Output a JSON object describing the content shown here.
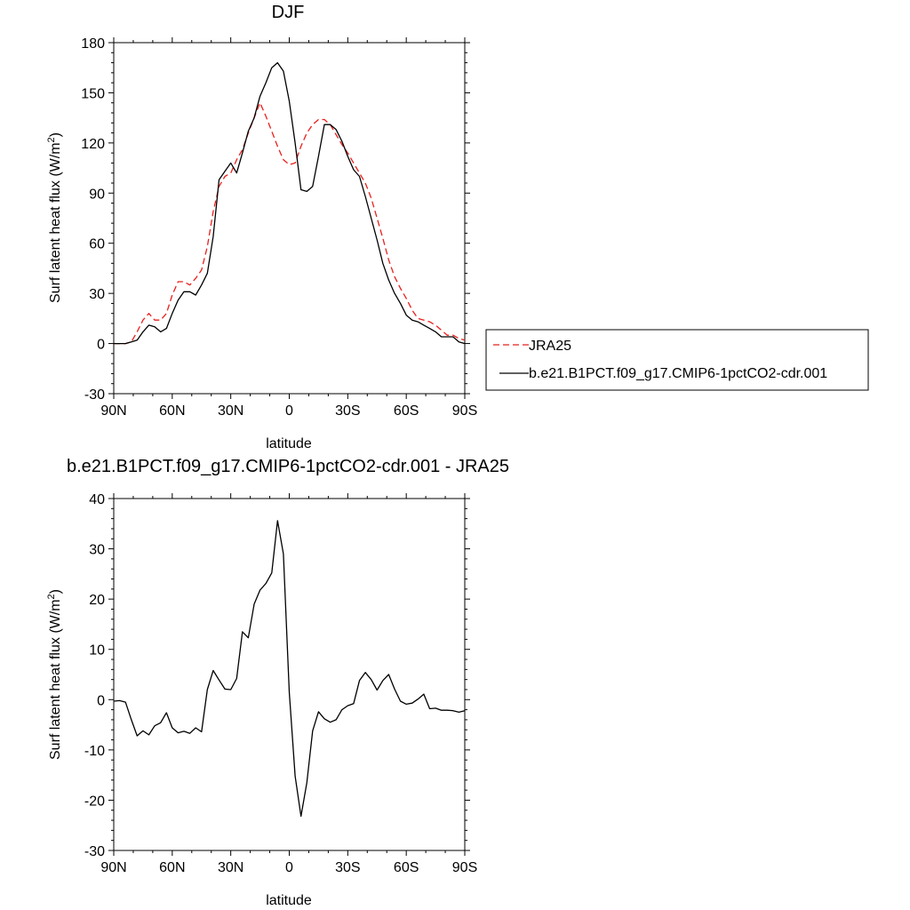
{
  "chart_data": [
    {
      "type": "line",
      "title": "DJF",
      "xlabel": "latitude",
      "ylabel": "Surf latent heat flux (W/m",
      "ylabel_sup": "2",
      "ylabel_end": ")",
      "xlim": [
        90,
        -90
      ],
      "ylim": [
        -30,
        180
      ],
      "yticks": [
        -30,
        0,
        30,
        60,
        90,
        120,
        150,
        180
      ],
      "xticks": [
        90,
        60,
        30,
        0,
        -30,
        -60,
        -90
      ],
      "xtick_labels": [
        "90N",
        "60N",
        "30N",
        "0",
        "30S",
        "60S",
        "90S"
      ],
      "legend": {
        "placement": "right",
        "entries": [
          "JRA25",
          "b.e21.B1PCT.f09_g17.CMIP6-1pctCO2-cdr.001"
        ]
      },
      "series": [
        {
          "name": "JRA25",
          "color": "#e8201c",
          "dash": "dashed",
          "x": [
            90,
            87,
            84,
            81,
            78,
            75,
            72,
            69,
            66,
            63,
            60,
            57,
            54,
            51,
            48,
            45,
            42,
            39,
            36,
            33,
            30,
            27,
            24,
            21,
            18,
            15,
            12,
            9,
            6,
            3,
            0,
            -3,
            -6,
            -9,
            -12,
            -15,
            -18,
            -21,
            -24,
            -27,
            -30,
            -33,
            -36,
            -39,
            -42,
            -45,
            -48,
            -51,
            -54,
            -57,
            -60,
            -63,
            -66,
            -69,
            -72,
            -75,
            -78,
            -81,
            -84,
            -87,
            -90
          ],
          "y": [
            0,
            0,
            0,
            1,
            7,
            14,
            18,
            14,
            14,
            18,
            29,
            37,
            37,
            35,
            39,
            44,
            58,
            79,
            94,
            100,
            102,
            110,
            116,
            126,
            135,
            144,
            136,
            127,
            118,
            110,
            107,
            108,
            118,
            126,
            131,
            134,
            134,
            131,
            125,
            119,
            114,
            108,
            102,
            96,
            87,
            75,
            63,
            50,
            40,
            33,
            27,
            20,
            15,
            14,
            13,
            11,
            8,
            5,
            5,
            3,
            2
          ]
        },
        {
          "name": "b.e21.B1PCT.f09_g17.CMIP6-1pctCO2-cdr.001",
          "color": "#000000",
          "dash": "solid",
          "x": [
            90,
            87,
            84,
            81,
            78,
            75,
            72,
            69,
            66,
            63,
            60,
            57,
            54,
            51,
            48,
            45,
            42,
            39,
            36,
            33,
            30,
            27,
            24,
            21,
            18,
            15,
            12,
            9,
            6,
            3,
            0,
            -3,
            -6,
            -9,
            -12,
            -15,
            -18,
            -21,
            -24,
            -27,
            -30,
            -33,
            -36,
            -39,
            -42,
            -45,
            -48,
            -51,
            -54,
            -57,
            -60,
            -63,
            -66,
            -69,
            -72,
            -75,
            -78,
            -81,
            -84,
            -87,
            -90
          ],
          "y": [
            0,
            0,
            0,
            1,
            2,
            7,
            11,
            10,
            7,
            9,
            18,
            26,
            31,
            31,
            29,
            35,
            42,
            64,
            98,
            103,
            108,
            102,
            114,
            127,
            135,
            148,
            156,
            165,
            168,
            163,
            145,
            120,
            92,
            91,
            94,
            112,
            131,
            131,
            128,
            121,
            112,
            104,
            100,
            88,
            75,
            62,
            48,
            38,
            30,
            24,
            17,
            14,
            13,
            11,
            9,
            7,
            4,
            4,
            4,
            1,
            0
          ]
        }
      ]
    },
    {
      "type": "line",
      "title": "b.e21.B1PCT.f09_g17.CMIP6-1pctCO2-cdr.001 - JRA25",
      "xlabel": "latitude",
      "ylabel": "Surf latent heat flux (W/m",
      "ylabel_sup": "2",
      "ylabel_end": ")",
      "xlim": [
        90,
        -90
      ],
      "ylim": [
        -30,
        40
      ],
      "yticks": [
        -30,
        -20,
        -10,
        0,
        10,
        20,
        30,
        40
      ],
      "xticks": [
        90,
        60,
        30,
        0,
        -30,
        -60,
        -90
      ],
      "xtick_labels": [
        "90N",
        "60N",
        "30N",
        "0",
        "30S",
        "60S",
        "90S"
      ],
      "series": [
        {
          "color": "#000000",
          "dash": "solid",
          "x": [
            90,
            87,
            84,
            81,
            78,
            75,
            72,
            69,
            66,
            63,
            60,
            57,
            54,
            51,
            48,
            45,
            42,
            39,
            36,
            33,
            30,
            27,
            24,
            21,
            18,
            15,
            12,
            9,
            6,
            3,
            0,
            -3,
            -6,
            -9,
            -12,
            -15,
            -18,
            -21,
            -24,
            -27,
            -30,
            -33,
            -36,
            -39,
            -42,
            -45,
            -48,
            -51,
            -54,
            -57,
            -60,
            -63,
            -66,
            -69,
            -72,
            -75,
            -78,
            -81,
            -84,
            -87,
            -90
          ],
          "y": [
            -0.3,
            -0.2,
            -0.5,
            -4,
            -7.2,
            -6.2,
            -7,
            -5.2,
            -4.6,
            -2.6,
            -5.6,
            -6.6,
            -6.3,
            -6.7,
            -5.6,
            -6.4,
            2.0,
            5.8,
            3.9,
            2.1,
            2.0,
            4.2,
            13.5,
            12.3,
            19,
            21.8,
            23.1,
            25.2,
            35.6,
            29,
            1.5,
            -15.2,
            -23.2,
            -16.5,
            -6.2,
            -2.4,
            -3.8,
            -4.5,
            -4.0,
            -2.0,
            -1.2,
            -0.8,
            3.8,
            5.4,
            4.0,
            1.9,
            3.8,
            5.0,
            2.1,
            -0.3,
            -0.9,
            -0.7,
            0.1,
            1.1,
            -1.8,
            -1.7,
            -2.1,
            -2.1,
            -2.2,
            -2.5,
            -2.2
          ]
        }
      ]
    }
  ]
}
